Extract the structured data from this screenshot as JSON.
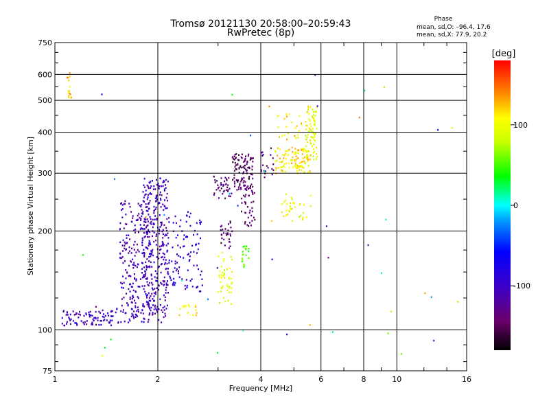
{
  "chart_data": {
    "type": "scatter",
    "title": "Tromsø 20121130 20:58:00–20:59:43",
    "subtitle": "RwPretec (8p)",
    "xlabel": "Frequency [MHz]",
    "ylabel": "Stationary phase Virtual Height [km]",
    "xscale": "log",
    "yscale": "log",
    "xlim": [
      1,
      16
    ],
    "ylim": [
      75,
      750
    ],
    "xticks": [
      1,
      2,
      4,
      6,
      8,
      10,
      16
    ],
    "xtick_labels": [
      "1",
      "2",
      "4",
      "6",
      "8",
      "10",
      "16"
    ],
    "yticks": [
      75,
      100,
      200,
      300,
      400,
      500,
      600,
      750
    ],
    "ytick_labels": [
      "75",
      "100",
      "200",
      "300",
      "400",
      "500",
      "600",
      "750"
    ],
    "grid": true,
    "stats": {
      "header": "Phase",
      "line1": "mean, sd,O: –96.4, 17.6",
      "line2": "mean, sd,X:  77.9, 20.2"
    },
    "colorbar": {
      "label": "[deg]",
      "range": [
        -180,
        180
      ],
      "ticks": [
        100,
        0,
        -100
      ],
      "tick_labels": [
        "100",
        "0",
        "-100"
      ],
      "placement": "right"
    },
    "clusters": [
      {
        "x": [
          1.05,
          1.5
        ],
        "y": [
          103,
          115
        ],
        "phase": -100,
        "n": 90
      },
      {
        "x": [
          1.5,
          2.1
        ],
        "y": [
          105,
          120
        ],
        "phase": -100,
        "n": 60
      },
      {
        "x": [
          1.55,
          1.9
        ],
        "y": [
          120,
          250
        ],
        "phase": -110,
        "n": 200
      },
      {
        "x": [
          1.8,
          2.15
        ],
        "y": [
          110,
          290
        ],
        "phase": -105,
        "n": 300
      },
      {
        "x": [
          2.1,
          2.7
        ],
        "y": [
          130,
          230
        ],
        "phase": -95,
        "n": 110
      },
      {
        "x": [
          2.3,
          2.6
        ],
        "y": [
          110,
          120
        ],
        "phase": 110,
        "n": 15
      },
      {
        "x": [
          3.0,
          3.3
        ],
        "y": [
          120,
          175
        ],
        "phase": 95,
        "n": 45
      },
      {
        "x": [
          3.5,
          3.7
        ],
        "y": [
          155,
          180
        ],
        "phase": 60,
        "n": 20
      },
      {
        "x": [
          2.9,
          3.3
        ],
        "y": [
          250,
          300
        ],
        "phase": -140,
        "n": 40
      },
      {
        "x": [
          3.05,
          3.3
        ],
        "y": [
          175,
          215
        ],
        "phase": -140,
        "n": 30
      },
      {
        "x": [
          3.3,
          3.8
        ],
        "y": [
          265,
          345
        ],
        "phase": -145,
        "n": 110
      },
      {
        "x": [
          3.5,
          3.85
        ],
        "y": [
          205,
          265
        ],
        "phase": -145,
        "n": 35
      },
      {
        "x": [
          4.0,
          4.4
        ],
        "y": [
          290,
          360
        ],
        "phase": -130,
        "n": 20
      },
      {
        "x": [
          4.4,
          5.6
        ],
        "y": [
          300,
          360
        ],
        "phase": 110,
        "n": 120
      },
      {
        "x": [
          5.4,
          5.85
        ],
        "y": [
          330,
          480
        ],
        "phase": 95,
        "n": 80
      },
      {
        "x": [
          4.5,
          5.6
        ],
        "y": [
          215,
          260
        ],
        "phase": 100,
        "n": 35
      },
      {
        "x": [
          4.4,
          5.4
        ],
        "y": [
          380,
          470
        ],
        "phase": 110,
        "n": 25
      },
      {
        "x": [
          1.08,
          1.12
        ],
        "y": [
          510,
          610
        ],
        "phase": 120,
        "n": 15
      },
      {
        "x": [
          1.05,
          16
        ],
        "y": [
          80,
          600
        ],
        "phase": 0,
        "n": 45
      }
    ]
  }
}
